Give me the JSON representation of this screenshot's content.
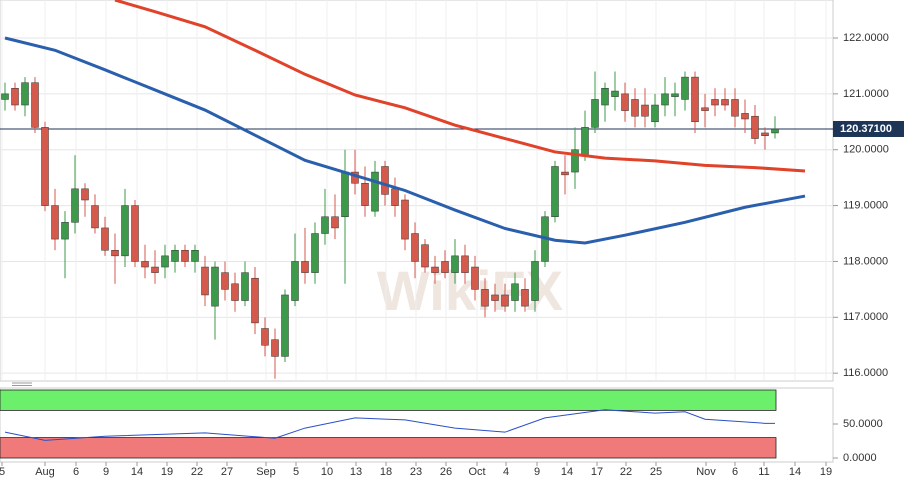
{
  "chart_data": {
    "type": "candlestick",
    "watermark": "WikiFX",
    "ylim": [
      115.86,
      122.68
    ],
    "yticks": [
      {
        "value": 116,
        "label": "116.0000"
      },
      {
        "value": 117,
        "label": "117.0000"
      },
      {
        "value": 118,
        "label": "118.0000"
      },
      {
        "value": 119,
        "label": "119.0000"
      },
      {
        "value": 120,
        "label": "120.0000"
      },
      {
        "value": 121,
        "label": "121.0000"
      },
      {
        "value": 122,
        "label": "122.0000"
      }
    ],
    "last_price": {
      "value": 120.371,
      "label": "120.37100"
    },
    "categories": [
      "5",
      "Aug",
      "6",
      "9",
      "14",
      "19",
      "22",
      "27",
      "Sep",
      "5",
      "10",
      "13",
      "18",
      "23",
      "26",
      "Oct",
      "4",
      "9",
      "14",
      "17",
      "22",
      "25",
      "Nov",
      "6",
      "11",
      "14",
      "19"
    ],
    "grid": true,
    "up_color": "#3d9a4b",
    "down_color": "#d65a4c",
    "ohlc": [
      [
        120.9,
        121.2,
        120.7,
        121.0
      ],
      [
        121.1,
        121.2,
        120.7,
        120.8
      ],
      [
        120.8,
        121.3,
        120.6,
        121.2
      ],
      [
        121.2,
        121.3,
        120.3,
        120.4
      ],
      [
        120.4,
        120.5,
        118.9,
        119.0
      ],
      [
        119.0,
        119.3,
        118.2,
        118.4
      ],
      [
        118.4,
        118.9,
        117.7,
        118.7
      ],
      [
        118.7,
        119.9,
        118.5,
        119.3
      ],
      [
        119.3,
        119.4,
        118.8,
        119.1
      ],
      [
        119.0,
        119.2,
        118.5,
        118.6
      ],
      [
        118.6,
        118.8,
        118.1,
        118.2
      ],
      [
        118.2,
        118.5,
        117.6,
        118.1
      ],
      [
        118.1,
        119.3,
        117.9,
        119.0
      ],
      [
        119.0,
        119.1,
        117.9,
        118.0
      ],
      [
        118.0,
        118.3,
        117.7,
        117.9
      ],
      [
        117.9,
        118.2,
        117.6,
        117.8
      ],
      [
        117.9,
        118.3,
        117.7,
        118.1
      ],
      [
        118.0,
        118.3,
        117.8,
        118.2
      ],
      [
        118.2,
        118.3,
        117.9,
        118.0
      ],
      [
        118.0,
        118.3,
        117.8,
        118.2
      ],
      [
        117.9,
        118.1,
        117.2,
        117.4
      ],
      [
        117.2,
        118.0,
        116.6,
        117.9
      ],
      [
        117.8,
        118.0,
        117.3,
        117.5
      ],
      [
        117.6,
        117.8,
        117.1,
        117.3
      ],
      [
        117.3,
        118.0,
        117.2,
        117.8
      ],
      [
        117.7,
        117.9,
        116.7,
        116.9
      ],
      [
        116.8,
        117.0,
        116.3,
        116.5
      ],
      [
        116.6,
        116.8,
        115.9,
        116.3
      ],
      [
        116.3,
        117.5,
        116.2,
        117.4
      ],
      [
        117.3,
        118.5,
        117.2,
        118.0
      ],
      [
        118.0,
        118.6,
        117.6,
        117.8
      ],
      [
        117.8,
        118.7,
        117.6,
        118.5
      ],
      [
        118.5,
        119.3,
        118.3,
        118.8
      ],
      [
        118.8,
        119.2,
        118.4,
        118.6
      ],
      [
        118.8,
        120.0,
        117.6,
        119.6
      ],
      [
        119.6,
        120.0,
        119.2,
        119.4
      ],
      [
        119.4,
        119.7,
        118.8,
        119.0
      ],
      [
        118.9,
        119.8,
        118.8,
        119.6
      ],
      [
        119.7,
        119.8,
        119.0,
        119.2
      ],
      [
        119.3,
        119.5,
        118.8,
        119.0
      ],
      [
        119.1,
        119.2,
        118.2,
        118.4
      ],
      [
        118.5,
        118.7,
        117.7,
        118.0
      ],
      [
        118.3,
        118.4,
        117.8,
        117.9
      ],
      [
        117.9,
        118.1,
        117.6,
        117.8
      ],
      [
        118.0,
        118.2,
        117.7,
        117.8
      ],
      [
        117.8,
        118.4,
        117.6,
        118.1
      ],
      [
        118.1,
        118.3,
        117.6,
        117.8
      ],
      [
        117.9,
        118.1,
        117.3,
        117.5
      ],
      [
        117.5,
        117.7,
        117.0,
        117.2
      ],
      [
        117.4,
        117.6,
        117.1,
        117.3
      ],
      [
        117.4,
        117.6,
        117.1,
        117.2
      ],
      [
        117.3,
        117.8,
        117.1,
        117.6
      ],
      [
        117.5,
        117.7,
        117.1,
        117.2
      ],
      [
        117.3,
        118.2,
        117.1,
        118.0
      ],
      [
        118.0,
        118.9,
        117.9,
        118.8
      ],
      [
        118.8,
        119.8,
        118.7,
        119.7
      ],
      [
        119.6,
        119.9,
        119.2,
        119.55
      ],
      [
        119.6,
        120.4,
        119.3,
        120.0
      ],
      [
        119.9,
        120.7,
        119.8,
        120.4
      ],
      [
        120.4,
        121.4,
        120.3,
        120.9
      ],
      [
        120.8,
        121.2,
        120.5,
        121.1
      ],
      [
        120.95,
        121.4,
        120.7,
        121.05
      ],
      [
        121.0,
        121.2,
        120.5,
        120.7
      ],
      [
        120.9,
        121.1,
        120.4,
        120.6
      ],
      [
        120.8,
        121.1,
        120.4,
        120.6
      ],
      [
        120.5,
        121.0,
        120.4,
        120.8
      ],
      [
        120.8,
        121.3,
        120.6,
        121.0
      ],
      [
        120.95,
        121.2,
        120.6,
        121.0
      ],
      [
        120.9,
        121.4,
        120.7,
        121.3
      ],
      [
        121.3,
        121.4,
        120.3,
        120.5
      ],
      [
        120.75,
        121.0,
        120.4,
        120.7
      ],
      [
        120.9,
        121.1,
        120.6,
        120.8
      ],
      [
        120.9,
        121.1,
        120.7,
        120.8
      ],
      [
        120.9,
        121.1,
        120.4,
        120.6
      ],
      [
        120.65,
        120.9,
        120.3,
        120.55
      ],
      [
        120.6,
        120.8,
        120.1,
        120.2
      ],
      [
        120.3,
        120.4,
        120.0,
        120.25
      ],
      [
        120.3,
        120.6,
        120.2,
        120.37
      ]
    ],
    "series": [
      {
        "color": "#e0422a",
        "x": [
          11,
          15,
          20,
          25,
          30,
          35,
          40,
          45,
          50,
          55,
          60,
          65,
          70,
          75,
          80
        ],
        "values": [
          122.68,
          122.47,
          122.2,
          121.78,
          121.35,
          120.98,
          120.75,
          120.44,
          120.2,
          119.96,
          119.85,
          119.8,
          119.72,
          119.68,
          119.62
        ]
      },
      {
        "color": "#2a5fad",
        "x": [
          0,
          5,
          10,
          15,
          20,
          25,
          30,
          35,
          40,
          45,
          50,
          55,
          58,
          62,
          68,
          74,
          80
        ],
        "values": [
          122.0,
          121.78,
          121.43,
          121.07,
          120.71,
          120.26,
          119.81,
          119.54,
          119.27,
          118.92,
          118.59,
          118.38,
          118.33,
          118.47,
          118.7,
          118.97,
          119.17
        ]
      }
    ],
    "oscillator": {
      "ylim": [
        0,
        100
      ],
      "yticks": [
        {
          "value": 0,
          "label": "0.0000"
        },
        {
          "value": 50,
          "label": "50.0000"
        }
      ],
      "bands": [
        {
          "range": [
            70,
            100
          ],
          "color": "#6cf06c"
        },
        {
          "range": [
            0,
            30
          ],
          "color": "#f07a7a"
        }
      ],
      "color": "#2a4fc8",
      "x": [
        0,
        4,
        10,
        20,
        27,
        30,
        35,
        40,
        45,
        50,
        54,
        60,
        65,
        68,
        70,
        76,
        77
      ],
      "values": [
        38,
        26,
        32,
        37,
        29,
        44,
        59,
        56,
        44,
        38,
        59,
        71,
        66,
        68,
        57,
        51,
        51
      ]
    }
  }
}
